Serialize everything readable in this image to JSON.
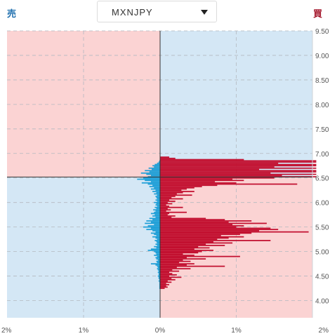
{
  "sell_label": "売",
  "buy_label": "買",
  "pair_selector": {
    "value": "MXNJPY",
    "icon": "caret-down-icon"
  },
  "colors": {
    "sell_bar": "#1f9fd7",
    "buy_bar": "#c20f2f",
    "bg_blue": "#d4e7f5",
    "bg_pink": "#fbd3d3",
    "grid": "#b3b9c0",
    "axis_text": "#555555"
  },
  "chart_data": {
    "type": "bar",
    "orientation": "horizontal-diverging",
    "title": "",
    "xlabel": "",
    "ylabel": "",
    "xlim": [
      -2,
      2
    ],
    "ylim": [
      3.65,
      9.5
    ],
    "x_ticks": [
      "2%",
      "1%",
      "0%",
      "1%",
      "2%"
    ],
    "y_ticks": [
      "9.50",
      "9.00",
      "8.50",
      "8.00",
      "7.50",
      "7.00",
      "6.50",
      "6.00",
      "5.50",
      "5.00",
      "4.50",
      "4.00"
    ],
    "current_rate": 6.52,
    "grid": true,
    "price_step": 0.025,
    "series": [
      {
        "name": "売",
        "side": "sell",
        "points": [
          [
            6.85,
            0.01
          ],
          [
            6.825,
            0.02
          ],
          [
            6.8,
            0.04
          ],
          [
            6.775,
            0.07
          ],
          [
            6.75,
            0.1
          ],
          [
            6.725,
            0.08
          ],
          [
            6.7,
            0.15
          ],
          [
            6.675,
            0.11
          ],
          [
            6.65,
            0.2
          ],
          [
            6.625,
            0.14
          ],
          [
            6.6,
            0.25
          ],
          [
            6.575,
            0.18
          ],
          [
            6.55,
            0.12
          ],
          [
            6.525,
            0.16
          ],
          [
            6.5,
            0.22
          ],
          [
            6.475,
            0.3
          ],
          [
            6.45,
            0.2
          ],
          [
            6.425,
            0.12
          ],
          [
            6.4,
            0.24
          ],
          [
            6.375,
            0.16
          ],
          [
            6.35,
            0.1
          ],
          [
            6.325,
            0.14
          ],
          [
            6.3,
            0.08
          ],
          [
            6.275,
            0.12
          ],
          [
            6.25,
            0.06
          ],
          [
            6.225,
            0.1
          ],
          [
            6.2,
            0.05
          ],
          [
            6.175,
            0.08
          ],
          [
            6.15,
            0.04
          ],
          [
            6.125,
            0.06
          ],
          [
            6.1,
            0.05
          ],
          [
            6.075,
            0.04
          ],
          [
            6.05,
            0.06
          ],
          [
            6.025,
            0.04
          ],
          [
            6.0,
            0.08
          ],
          [
            5.975,
            0.05
          ],
          [
            5.95,
            0.06
          ],
          [
            5.925,
            0.04
          ],
          [
            5.9,
            0.07
          ],
          [
            5.875,
            0.05
          ],
          [
            5.85,
            0.09
          ],
          [
            5.825,
            0.06
          ],
          [
            5.8,
            0.08
          ],
          [
            5.775,
            0.12
          ],
          [
            5.75,
            0.07
          ],
          [
            5.725,
            0.1
          ],
          [
            5.7,
            0.06
          ],
          [
            5.675,
            0.14
          ],
          [
            5.65,
            0.1
          ],
          [
            5.625,
            0.18
          ],
          [
            5.6,
            0.12
          ],
          [
            5.575,
            0.2
          ],
          [
            5.55,
            0.08
          ],
          [
            5.525,
            0.16
          ],
          [
            5.5,
            0.22
          ],
          [
            5.475,
            0.12
          ],
          [
            5.45,
            0.18
          ],
          [
            5.425,
            0.1
          ],
          [
            5.4,
            0.06
          ],
          [
            5.375,
            0.12
          ],
          [
            5.35,
            0.08
          ],
          [
            5.325,
            0.05
          ],
          [
            5.3,
            0.1
          ],
          [
            5.275,
            0.06
          ],
          [
            5.25,
            0.04
          ],
          [
            5.225,
            0.07
          ],
          [
            5.2,
            0.05
          ],
          [
            5.175,
            0.04
          ],
          [
            5.15,
            0.06
          ],
          [
            5.125,
            0.04
          ],
          [
            5.1,
            0.08
          ],
          [
            5.075,
            0.05
          ],
          [
            5.05,
            0.12
          ],
          [
            5.025,
            0.16
          ],
          [
            5.0,
            0.08
          ],
          [
            4.975,
            0.06
          ],
          [
            4.95,
            0.05
          ],
          [
            4.925,
            0.08
          ],
          [
            4.9,
            0.04
          ],
          [
            4.875,
            0.06
          ],
          [
            4.85,
            0.05
          ],
          [
            4.825,
            0.03
          ],
          [
            4.8,
            0.05
          ],
          [
            4.775,
            0.04
          ],
          [
            4.75,
            0.12
          ],
          [
            4.725,
            0.06
          ],
          [
            4.7,
            0.04
          ],
          [
            4.675,
            0.03
          ],
          [
            4.65,
            0.04
          ],
          [
            4.625,
            0.03
          ],
          [
            4.6,
            0.02
          ],
          [
            4.575,
            0.03
          ],
          [
            4.55,
            0.02
          ],
          [
            4.525,
            0.02
          ],
          [
            4.5,
            0.03
          ],
          [
            4.475,
            0.02
          ],
          [
            4.45,
            0.02
          ],
          [
            4.425,
            0.01
          ],
          [
            4.4,
            0.02
          ],
          [
            4.375,
            0.01
          ],
          [
            4.35,
            0.01
          ],
          [
            4.325,
            0.01
          ],
          [
            4.3,
            0.01
          ],
          [
            4.275,
            0.01
          ],
          [
            4.25,
            0.01
          ]
        ]
      },
      {
        "name": "買",
        "side": "buy",
        "points": [
          [
            6.925,
            0.12
          ],
          [
            6.9,
            0.2
          ],
          [
            6.875,
            1.1
          ],
          [
            6.85,
            2.05
          ],
          [
            6.825,
            2.05
          ],
          [
            6.8,
            1.55
          ],
          [
            6.775,
            2.05
          ],
          [
            6.75,
            2.05
          ],
          [
            6.725,
            1.5
          ],
          [
            6.7,
            2.05
          ],
          [
            6.675,
            1.3
          ],
          [
            6.65,
            2.05
          ],
          [
            6.625,
            2.05
          ],
          [
            6.6,
            1.45
          ],
          [
            6.575,
            2.05
          ],
          [
            6.55,
            1.6
          ],
          [
            6.525,
            2.05
          ],
          [
            6.5,
            1.5
          ],
          [
            6.475,
            0.95
          ],
          [
            6.45,
            1.1
          ],
          [
            6.425,
            0.72
          ],
          [
            6.4,
            1.0
          ],
          [
            6.375,
            1.8
          ],
          [
            6.35,
            0.75
          ],
          [
            6.325,
            0.55
          ],
          [
            6.3,
            0.45
          ],
          [
            6.275,
            0.35
          ],
          [
            6.25,
            0.28
          ],
          [
            6.225,
            0.45
          ],
          [
            6.2,
            0.3
          ],
          [
            6.175,
            0.22
          ],
          [
            6.15,
            0.42
          ],
          [
            6.125,
            0.2
          ],
          [
            6.1,
            0.15
          ],
          [
            6.075,
            0.3
          ],
          [
            6.05,
            0.12
          ],
          [
            6.025,
            0.2
          ],
          [
            6.0,
            0.1
          ],
          [
            5.975,
            0.16
          ],
          [
            5.95,
            0.08
          ],
          [
            5.925,
            0.12
          ],
          [
            5.9,
            0.3
          ],
          [
            5.875,
            0.1
          ],
          [
            5.85,
            0.14
          ],
          [
            5.825,
            0.08
          ],
          [
            5.8,
            0.35
          ],
          [
            5.775,
            0.12
          ],
          [
            5.75,
            0.1
          ],
          [
            5.725,
            0.2
          ],
          [
            5.7,
            0.15
          ],
          [
            5.675,
            0.6
          ],
          [
            5.65,
            0.85
          ],
          [
            5.625,
            1.2
          ],
          [
            5.6,
            0.9
          ],
          [
            5.575,
            1.4
          ],
          [
            5.55,
            0.95
          ],
          [
            5.525,
            1.1
          ],
          [
            5.5,
            1.0
          ],
          [
            5.475,
            1.45
          ],
          [
            5.45,
            1.55
          ],
          [
            5.425,
            1.3
          ],
          [
            5.4,
            1.95
          ],
          [
            5.375,
            1.2
          ],
          [
            5.35,
            1.05
          ],
          [
            5.325,
            0.8
          ],
          [
            5.3,
            1.1
          ],
          [
            5.275,
            0.9
          ],
          [
            5.25,
            0.75
          ],
          [
            5.225,
            1.45
          ],
          [
            5.2,
            0.7
          ],
          [
            5.175,
            0.95
          ],
          [
            5.15,
            0.6
          ],
          [
            5.125,
            0.85
          ],
          [
            5.1,
            0.5
          ],
          [
            5.075,
            0.65
          ],
          [
            5.05,
            0.45
          ],
          [
            5.025,
            0.7
          ],
          [
            5.0,
            0.55
          ],
          [
            4.975,
            0.5
          ],
          [
            4.95,
            0.3
          ],
          [
            4.925,
            0.45
          ],
          [
            4.9,
            1.05
          ],
          [
            4.875,
            0.35
          ],
          [
            4.85,
            0.6
          ],
          [
            4.825,
            0.3
          ],
          [
            4.8,
            0.4
          ],
          [
            4.775,
            0.25
          ],
          [
            4.75,
            0.45
          ],
          [
            4.725,
            0.35
          ],
          [
            4.7,
            0.85
          ],
          [
            4.675,
            0.22
          ],
          [
            4.65,
            0.4
          ],
          [
            4.625,
            0.16
          ],
          [
            4.6,
            0.25
          ],
          [
            4.575,
            0.12
          ],
          [
            4.55,
            0.16
          ],
          [
            4.525,
            0.22
          ],
          [
            4.5,
            0.12
          ],
          [
            4.475,
            0.28
          ],
          [
            4.45,
            0.15
          ],
          [
            4.425,
            0.2
          ],
          [
            4.4,
            0.1
          ],
          [
            4.375,
            0.15
          ],
          [
            4.35,
            0.08
          ],
          [
            4.325,
            0.12
          ],
          [
            4.3,
            0.08
          ],
          [
            4.275,
            0.1
          ],
          [
            4.25,
            0.06
          ]
        ]
      }
    ]
  }
}
